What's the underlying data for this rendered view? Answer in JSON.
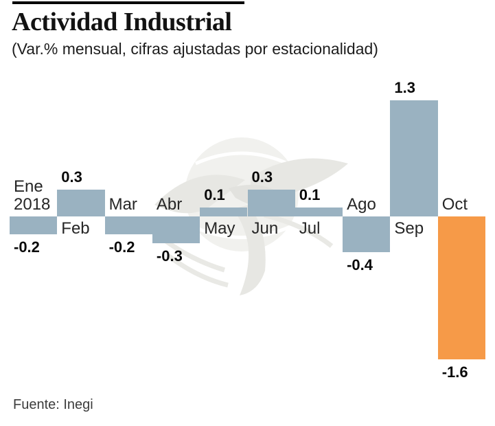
{
  "header": {
    "title": "Actividad Industrial",
    "subtitle": "(Var.% mensual, cifras ajustadas por estacionalidad)"
  },
  "footer": {
    "source": "Fuente: Inegi"
  },
  "watermark": {
    "name": "eagle-globe-emblem-watermark"
  },
  "colors": {
    "bar": "#9ab2c1",
    "highlight": "#f69a48",
    "top_rule": "#000000",
    "title_text": "#121212",
    "value_text": "#0a0a0a",
    "month_text": "#262626"
  },
  "chart_data": {
    "type": "bar",
    "title": "Actividad Industrial",
    "subtitle": "(Var.% mensual, cifras ajustadas por estacionalidad)",
    "source": "Fuente: Inegi",
    "categories": [
      "Ene\n2018",
      "Feb",
      "Mar",
      "Abr",
      "May",
      "Jun",
      "Jul",
      "Ago",
      "Sep",
      "Oct"
    ],
    "values": [
      -0.2,
      0.3,
      -0.2,
      -0.3,
      0.1,
      0.3,
      0.1,
      -0.4,
      1.3,
      -1.6
    ],
    "value_labels": [
      "-0.2",
      "0.3",
      "-0.2",
      "-0.3",
      "0.1",
      "0.3",
      "0.1",
      "-0.4",
      "1.3",
      "-1.6"
    ],
    "unit": "%",
    "bar_color": "#9ab2c1",
    "highlight_color": "#f69a48",
    "highlight_index": 9,
    "baseline_value": 0,
    "ylim": [
      -1.6,
      1.3
    ],
    "grid": false,
    "legend": false
  }
}
